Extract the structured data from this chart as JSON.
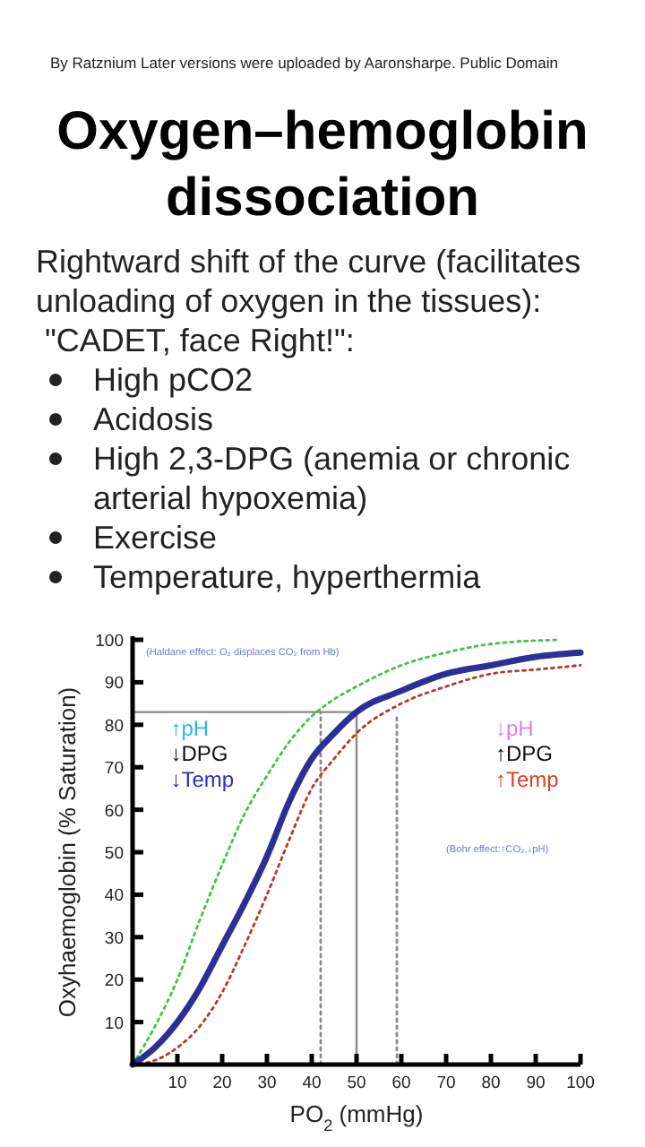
{
  "chart_data": {
    "type": "line",
    "title": "Oxygen–hemoglobin dissociation",
    "subtitle": "Rightward shift of the curve (facilitates unloading of oxygen in the tissues):\n \"CADET, face Right!\":",
    "xlabel": "PO$_{2}$ (mmHg)",
    "ylabel": "Oxyhaemoglobin (% Saturation)",
    "xlim": [
      0,
      100
    ],
    "ylim": [
      0,
      100
    ],
    "xticks": [
      10,
      20,
      30,
      40,
      50,
      60,
      70,
      80,
      90,
      100
    ],
    "yticks": [
      10,
      20,
      30,
      40,
      50,
      60,
      70,
      80,
      90,
      100
    ],
    "grid": false,
    "series": [
      {
        "color": "#2b2f96",
        "line_style": "solid",
        "x": [
          0,
          5,
          10,
          15,
          20,
          25,
          30,
          35,
          40,
          45,
          50,
          60,
          70,
          80,
          90,
          100
        ],
        "values": [
          0,
          4,
          10,
          18,
          28,
          38,
          49,
          62,
          72,
          78,
          83,
          88,
          92,
          94,
          96,
          97
        ]
      },
      {
        "color": "#43c443",
        "line_style": "dotted",
        "x": [
          0,
          5,
          10,
          15,
          20,
          25,
          30,
          35,
          40,
          45,
          50,
          60,
          70,
          80,
          95
        ],
        "values": [
          0,
          9,
          20,
          34,
          47,
          59,
          68,
          76,
          82,
          86,
          89,
          94,
          97,
          99,
          100
        ]
      },
      {
        "color": "#b5392c",
        "line_style": "dotted",
        "x": [
          0,
          5,
          10,
          15,
          20,
          25,
          30,
          35,
          40,
          45,
          50,
          60,
          70,
          80,
          90,
          100
        ],
        "values": [
          0,
          1,
          4,
          9,
          17,
          28,
          40,
          53,
          65,
          72,
          78,
          85,
          89,
          92,
          93,
          94
        ]
      },
      {
        "color": "#8a8a8a",
        "line_style": "solid",
        "x": [
          0,
          50,
          50
        ],
        "values": [
          83,
          83,
          0
        ]
      },
      {
        "color": "#8a8a8a",
        "line_style": "dotted",
        "x": [
          42,
          42
        ],
        "values": [
          0,
          83
        ]
      },
      {
        "color": "#8a8a8a",
        "line_style": "dotted",
        "x": [
          59,
          59
        ],
        "values": [
          0,
          82
        ]
      }
    ],
    "annotations": [
      "By Ratznium Later versions were uploaded by Aaronsharpe. Public Domain",
      "High pCO2",
      "Acidosis",
      "High 2,3-DPG (anemia or chronic arterial hypoxemia)",
      "Exercise",
      "Temperature, hyperthermia",
      "(Haldane effect: O₂ displaces CO₂ from Hb)",
      "(Bohr effect:↑CO₂,↓pH)",
      "↑pH",
      "↓DPG",
      "↓Temp",
      "↓pH",
      "↑DPG",
      "↑Temp"
    ]
  }
}
